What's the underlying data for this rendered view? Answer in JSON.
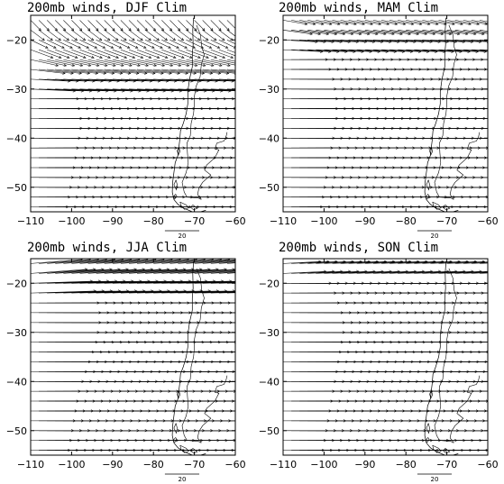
{
  "figure": {
    "panels": [
      {
        "title": "200mb winds, DJF Clim",
        "season": "DJF"
      },
      {
        "title": "200mb winds, MAM Clim",
        "season": "MAM"
      },
      {
        "title": "200mb winds, JJA Clim",
        "season": "JJA"
      },
      {
        "title": "200mb winds, SON Clim",
        "season": "SON"
      }
    ],
    "x_ticks": [
      "−110",
      "−100",
      "−90",
      "−80",
      "−70",
      "−60"
    ],
    "y_ticks": [
      "−20",
      "−30",
      "−40",
      "−50"
    ],
    "reference_vector_label": "20",
    "line_color": "#000000",
    "background": "#ffffff"
  },
  "chart_data": [
    {
      "type": "vector",
      "title": "200mb winds, DJF Clim",
      "xlim": [
        -110,
        -60
      ],
      "ylim": [
        -55,
        -15
      ],
      "x_ticks": [
        -110,
        -100,
        -90,
        -80,
        -70,
        -60
      ],
      "y_ticks": [
        -20,
        -30,
        -40,
        -50
      ],
      "reference_vector": 20,
      "zonal_wind_by_lat": [
        [
          -16,
          6
        ],
        [
          -18,
          8
        ],
        [
          -20,
          10
        ],
        [
          -22,
          13
        ],
        [
          -24,
          16
        ],
        [
          -26,
          20
        ],
        [
          -28,
          23
        ],
        [
          -30,
          26
        ],
        [
          -32,
          28
        ],
        [
          -34,
          29
        ],
        [
          -36,
          30
        ],
        [
          -38,
          30
        ],
        [
          -40,
          29
        ],
        [
          -42,
          28
        ],
        [
          -44,
          27
        ],
        [
          -46,
          26
        ],
        [
          -48,
          25
        ],
        [
          -50,
          24
        ],
        [
          -52,
          23
        ],
        [
          -54,
          22
        ]
      ],
      "meridional_wind_by_lat": [
        [
          -16,
          -5
        ],
        [
          -18,
          -5
        ],
        [
          -20,
          -4
        ],
        [
          -22,
          -4
        ],
        [
          -24,
          -3
        ],
        [
          -26,
          -2
        ],
        [
          -28,
          -1
        ],
        [
          -30,
          -1
        ],
        [
          -32,
          0
        ],
        [
          -34,
          0
        ]
      ]
    },
    {
      "type": "vector",
      "title": "200mb winds, MAM Clim",
      "xlim": [
        -110,
        -60
      ],
      "ylim": [
        -55,
        -15
      ],
      "x_ticks": [
        -110,
        -100,
        -90,
        -80,
        -70,
        -60
      ],
      "y_ticks": [
        -20,
        -30,
        -40,
        -50
      ],
      "reference_vector": 20,
      "zonal_wind_by_lat": [
        [
          -16,
          14
        ],
        [
          -18,
          17
        ],
        [
          -20,
          20
        ],
        [
          -22,
          23
        ],
        [
          -24,
          26
        ],
        [
          -26,
          28
        ],
        [
          -28,
          30
        ],
        [
          -30,
          31
        ],
        [
          -32,
          32
        ],
        [
          -34,
          32
        ],
        [
          -36,
          32
        ],
        [
          -38,
          31
        ],
        [
          -40,
          30
        ],
        [
          -42,
          29
        ],
        [
          -44,
          28
        ],
        [
          -46,
          27
        ],
        [
          -48,
          26
        ],
        [
          -50,
          25
        ],
        [
          -52,
          24
        ],
        [
          -54,
          23
        ]
      ],
      "meridional_wind_by_lat": [
        [
          -16,
          -2
        ],
        [
          -18,
          -2
        ],
        [
          -20,
          -1
        ],
        [
          -22,
          -1
        ],
        [
          -24,
          0
        ]
      ]
    },
    {
      "type": "vector",
      "title": "200mb winds, JJA Clim",
      "xlim": [
        -110,
        -60
      ],
      "ylim": [
        -55,
        -15
      ],
      "x_ticks": [
        -110,
        -100,
        -90,
        -80,
        -70,
        -60
      ],
      "y_ticks": [
        -20,
        -30,
        -40,
        -50
      ],
      "reference_vector": 20,
      "zonal_wind_by_lat": [
        [
          -16,
          30
        ],
        [
          -18,
          33
        ],
        [
          -20,
          36
        ],
        [
          -22,
          38
        ],
        [
          -24,
          40
        ],
        [
          -26,
          41
        ],
        [
          -28,
          41
        ],
        [
          -30,
          40
        ],
        [
          -32,
          39
        ],
        [
          -34,
          37
        ],
        [
          -36,
          35
        ],
        [
          -38,
          33
        ],
        [
          -40,
          31
        ],
        [
          -42,
          29
        ],
        [
          -44,
          28
        ],
        [
          -46,
          27
        ],
        [
          -48,
          26
        ],
        [
          -50,
          25
        ],
        [
          -52,
          24
        ],
        [
          -54,
          23
        ]
      ],
      "meridional_wind_by_lat": [
        [
          -16,
          2
        ],
        [
          -18,
          2
        ],
        [
          -20,
          1
        ],
        [
          -22,
          1
        ],
        [
          -24,
          0
        ]
      ]
    },
    {
      "type": "vector",
      "title": "200mb winds, SON Clim",
      "xlim": [
        -110,
        -60
      ],
      "ylim": [
        -55,
        -15
      ],
      "x_ticks": [
        -110,
        -100,
        -90,
        -80,
        -70,
        -60
      ],
      "y_ticks": [
        -20,
        -30,
        -40,
        -50
      ],
      "reference_vector": 20,
      "zonal_wind_by_lat": [
        [
          -16,
          22
        ],
        [
          -18,
          25
        ],
        [
          -20,
          28
        ],
        [
          -22,
          31
        ],
        [
          -24,
          33
        ],
        [
          -26,
          35
        ],
        [
          -28,
          36
        ],
        [
          -30,
          36
        ],
        [
          -32,
          35
        ],
        [
          -34,
          34
        ],
        [
          -36,
          33
        ],
        [
          -38,
          32
        ],
        [
          -40,
          31
        ],
        [
          -42,
          30
        ],
        [
          -44,
          29
        ],
        [
          -46,
          28
        ],
        [
          -48,
          27
        ],
        [
          -50,
          26
        ],
        [
          -52,
          25
        ],
        [
          -54,
          24
        ]
      ],
      "meridional_wind_by_lat": [
        [
          -16,
          1
        ],
        [
          -18,
          1
        ],
        [
          -20,
          0
        ]
      ]
    }
  ]
}
